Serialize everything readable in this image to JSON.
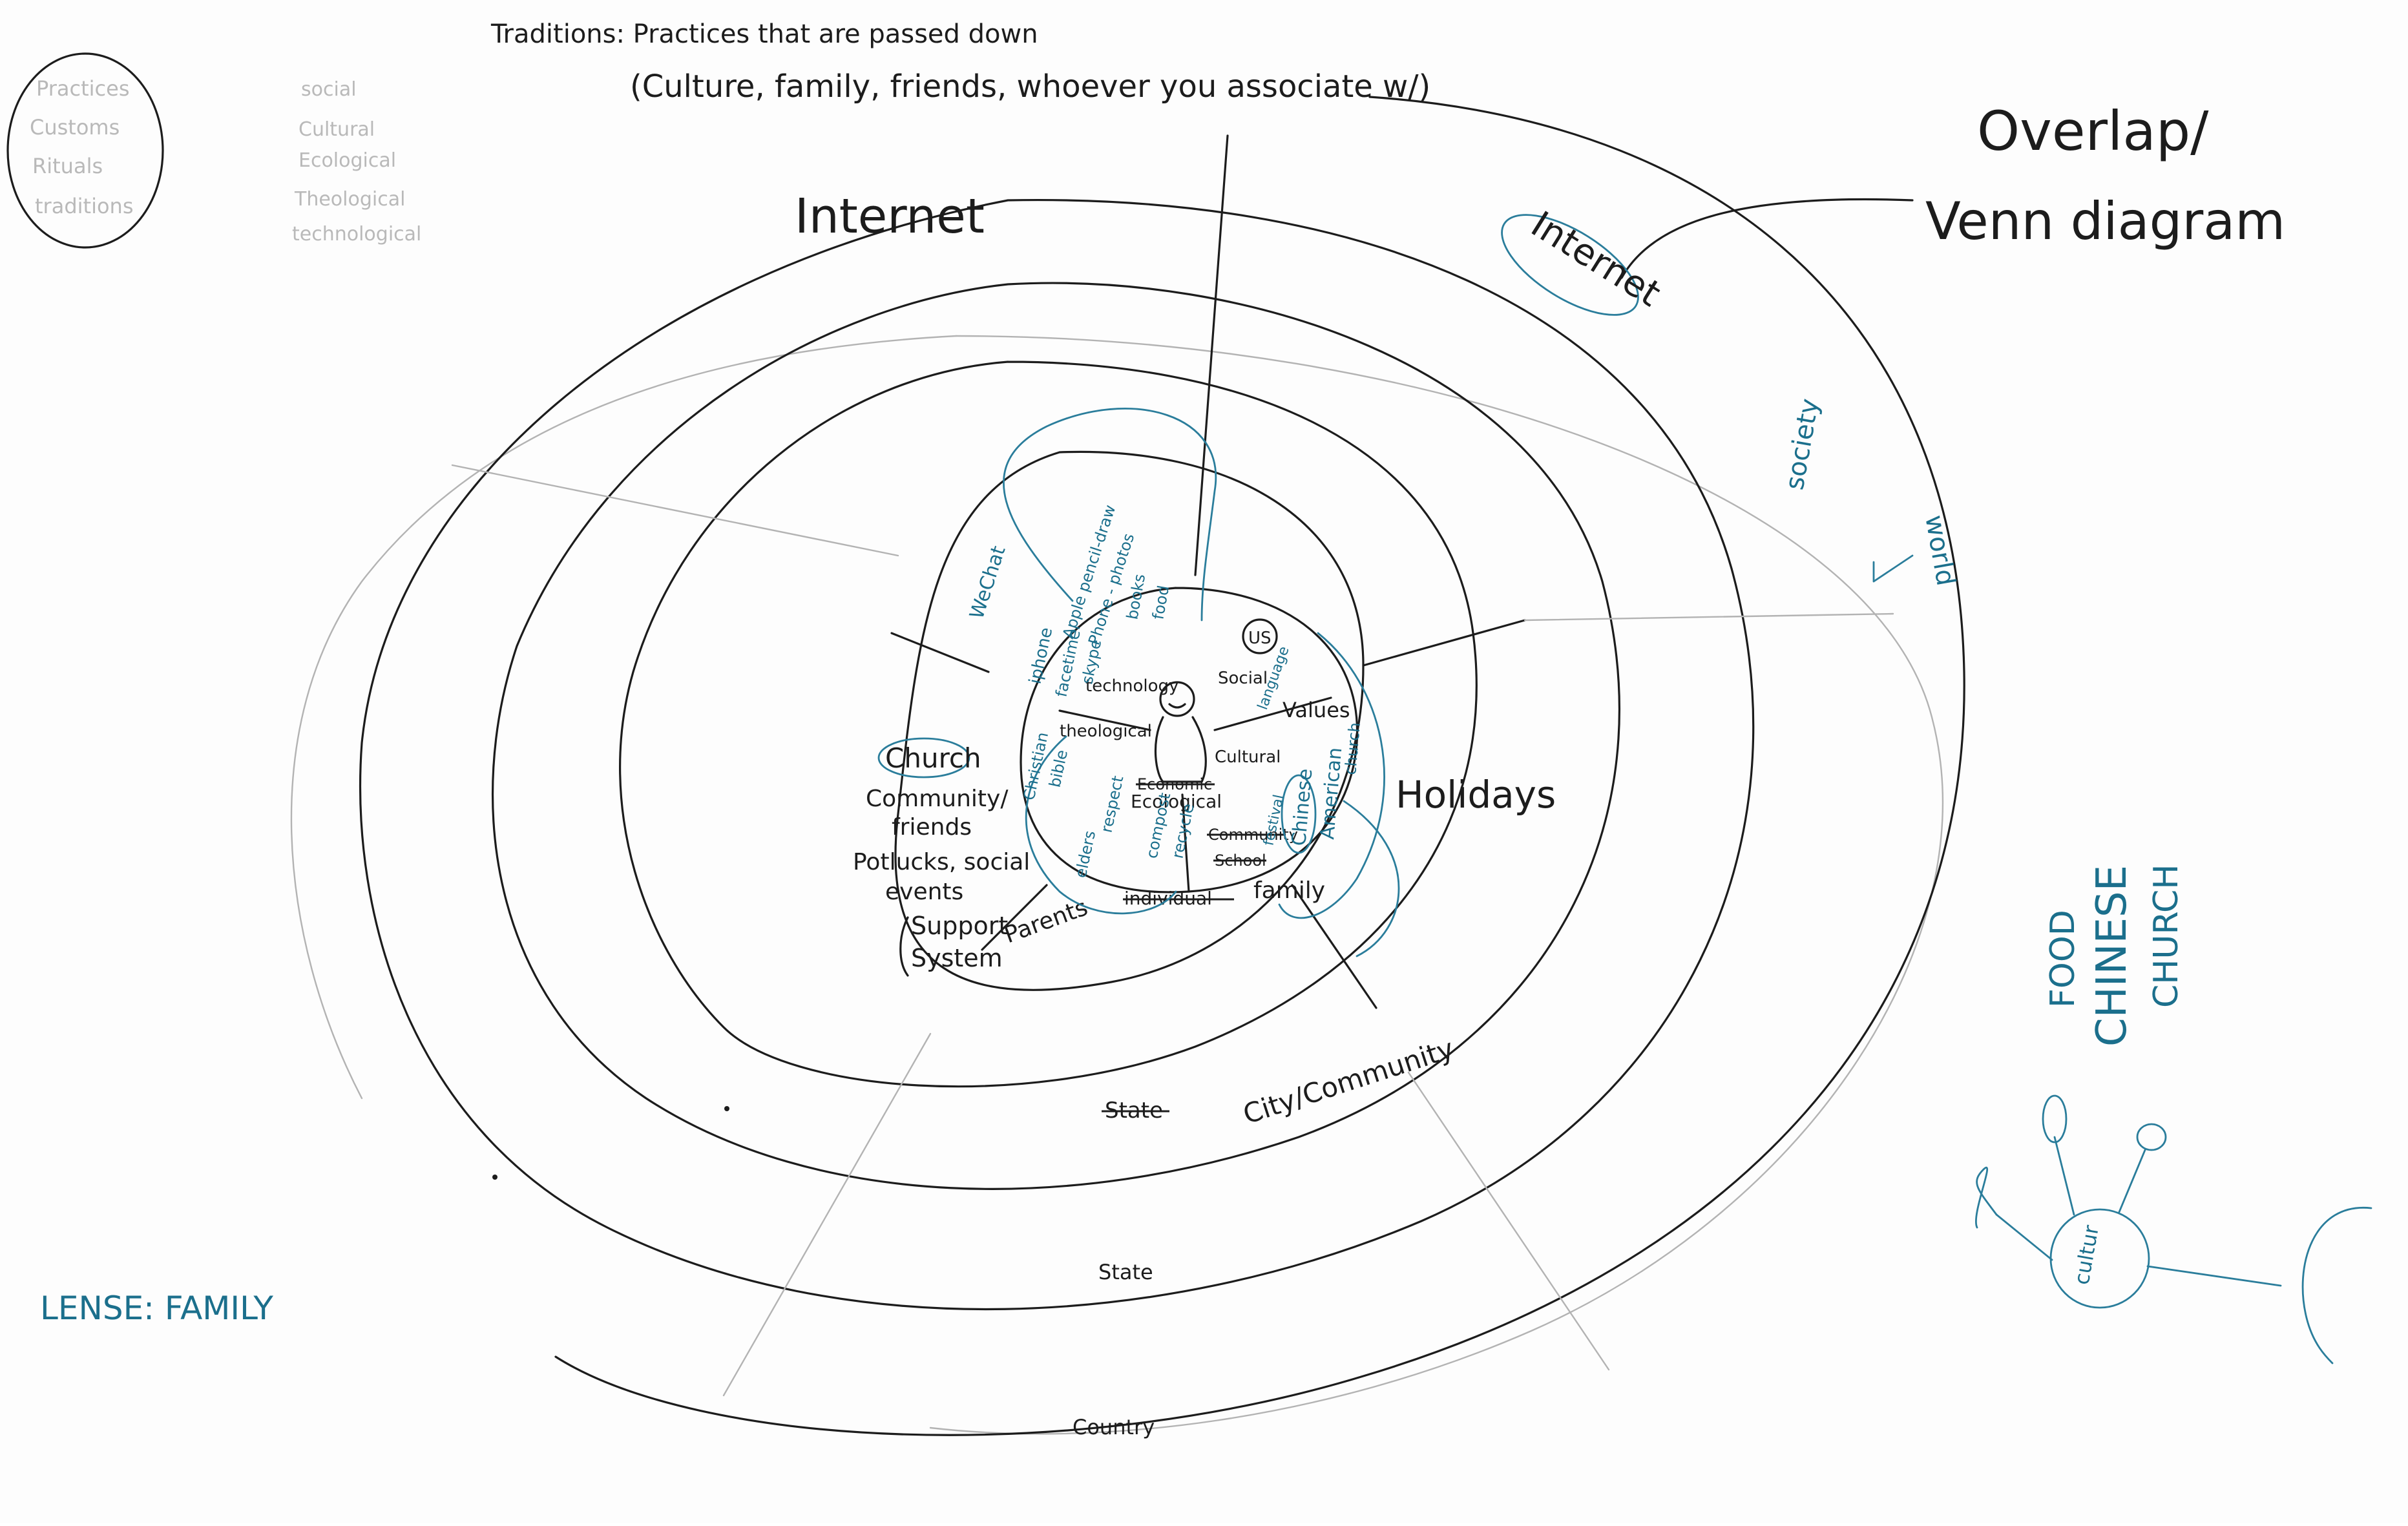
{
  "colors": {
    "marker_black": "#1c1c1c",
    "marker_blue": "#1b6f8c",
    "faded_grey": "#b9b9b9",
    "board": "#fdfdfd"
  },
  "header": {
    "definition_line": "Traditions: Practices that are passed down",
    "definition_paren": "(Culture, family, friends, whoever you associate w/)"
  },
  "top_left_list": [
    "Practices",
    "Customs",
    "Rituals",
    "traditions"
  ],
  "faded_lenses": [
    "social",
    "Cultural",
    "Ecological",
    "Theological",
    "technological"
  ],
  "top_right": {
    "overlap_line1": "Overlap/",
    "overlap_line2": "Venn diagram",
    "internet_circled": "Internet"
  },
  "ring_labels": {
    "internet": "Internet",
    "society": "society",
    "world": "world",
    "holidays": "Holidays",
    "city_community": "City/Community",
    "state_struck": "State",
    "state": "State",
    "country": "Country"
  },
  "left_notes": {
    "church": "Church",
    "community": "Community/",
    "friends": "friends",
    "potlucks": "Potlucks, social",
    "events": "events",
    "support": "Support",
    "system": "System",
    "parents": "Parents"
  },
  "center": {
    "technology": "technology",
    "social": "Social",
    "theological": "theological",
    "values": "Values",
    "cultural": "Cultural",
    "ecological": "Ecological",
    "economic_struck": "Economic",
    "community_struck": "Community",
    "school_struck": "School",
    "individual_struck": "individual",
    "family": "family"
  },
  "center_blue_words": {
    "wechat": "WeChat",
    "iphone": "iphone",
    "facetime": "facetime",
    "skype": "skype",
    "draw": "Apple pencil-draw",
    "photos": "Phone - photos",
    "books": "books",
    "food": "food",
    "language": "language",
    "us": "US",
    "chinese": "Chinese",
    "american": "American",
    "church": "church",
    "christian": "Christian",
    "bible": "bible",
    "respect": "respect",
    "elders": "elders",
    "compost": "compost",
    "recycle": "recycle",
    "festival": "festival"
  },
  "right_side": {
    "food": "FOOD",
    "chinese": "CHINESE",
    "church": "CHURCH",
    "node_label": "cultur"
  },
  "bottom_left": {
    "lens_label": "LENSE: FAMILY"
  }
}
